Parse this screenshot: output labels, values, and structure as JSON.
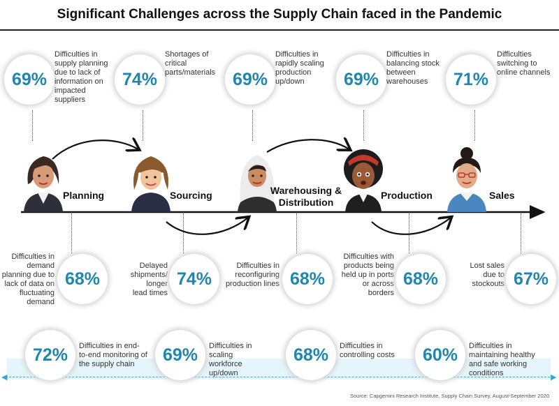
{
  "title": "Significant Challenges across the Supply Chain faced in the Pandemic",
  "colors": {
    "accent": "#1f86b0",
    "band": "#e4f5fb",
    "axis": "#111111"
  },
  "stages": [
    {
      "label": "Planning"
    },
    {
      "label": "Sourcing"
    },
    {
      "label": "Warehousing & Distribution"
    },
    {
      "label": "Production"
    },
    {
      "label": "Sales"
    }
  ],
  "top_stats": [
    {
      "pct": "69%",
      "text": "Difficulties in supply planning due to lack of information on impacted suppliers"
    },
    {
      "pct": "74%",
      "text": "Shortages of critical parts/materials"
    },
    {
      "pct": "69%",
      "text": "Difficulties in rapidly scaling production up/down"
    },
    {
      "pct": "69%",
      "text": "Difficulties in balancing stock between warehouses"
    },
    {
      "pct": "71%",
      "text": "Difficulties switching to online channels"
    }
  ],
  "bottom_stats": [
    {
      "pct": "68%",
      "text": "Difficulties in demand planning due to lack of data on fluctuating demand"
    },
    {
      "pct": "74%",
      "text": "Delayed shipments/ longer lead times"
    },
    {
      "pct": "68%",
      "text": "Difficulties in reconfiguring production lines"
    },
    {
      "pct": "68%",
      "text": "Difficulties with products being held up in ports or across borders"
    },
    {
      "pct": "67%",
      "text": "Lost sales due to stockouts"
    }
  ],
  "overall_stats": [
    {
      "pct": "72%",
      "text": "Difficulties in end-to-end monitoring of the supply chain"
    },
    {
      "pct": "69%",
      "text": "Difficulties in scaling workforce up/down"
    },
    {
      "pct": "68%",
      "text": "Difficulties in controlling costs"
    },
    {
      "pct": "60%",
      "text": "Difficulties in maintaining healthy and safe working conditions"
    }
  ],
  "icons": [
    "planner-avatar-icon",
    "sourcing-avatar-icon",
    "warehouse-avatar-icon",
    "production-avatar-icon",
    "sales-avatar-icon",
    "flow-arrow-icon"
  ],
  "source": "Source: Capgemini Research Institute, Supply Chain Survey, August-September 2020"
}
